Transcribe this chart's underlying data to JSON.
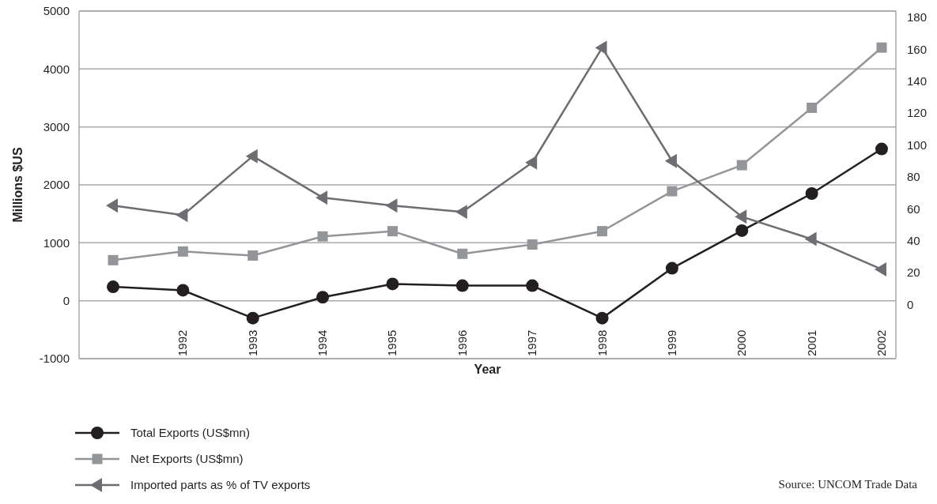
{
  "chart_data": {
    "type": "line",
    "categories": [
      null,
      "1992",
      "1993",
      "1994",
      "1995",
      "1996",
      "1997",
      "1998",
      "1999",
      "2000",
      "2001",
      "2002"
    ],
    "series": [
      {
        "name": "Total Exports (US$mn)",
        "color": "#231f20",
        "marker": "circle",
        "values": [
          240,
          180,
          -300,
          60,
          290,
          260,
          260,
          -300,
          560,
          1210,
          1850,
          2620
        ]
      },
      {
        "name": "Net Exports (US$mn)",
        "color": "#939598",
        "marker": "square",
        "values": [
          700,
          850,
          780,
          1110,
          1200,
          810,
          970,
          1200,
          1890,
          2340,
          3330,
          4370
        ]
      },
      {
        "name": "Imported parts as % of TV exports",
        "color": "#6d6e71",
        "marker": "triangle",
        "axis": "y2",
        "values": [
          62,
          56,
          93,
          67,
          62,
          58,
          89,
          161,
          90,
          55,
          41,
          22
        ]
      }
    ],
    "xlabel": "Year",
    "ylabel": "Millions $US",
    "ylim": [
      -1000,
      5000
    ],
    "yticks": [
      -1000,
      0,
      1000,
      2000,
      3000,
      4000,
      5000
    ],
    "y2lim": [
      -34,
      184
    ],
    "y2ticks": [
      0,
      20,
      40,
      60,
      80,
      100,
      120,
      140,
      160,
      180
    ],
    "grid": "y",
    "legend": "bottom left",
    "annotations": [
      "Source: UNCOM Trade Data"
    ]
  }
}
